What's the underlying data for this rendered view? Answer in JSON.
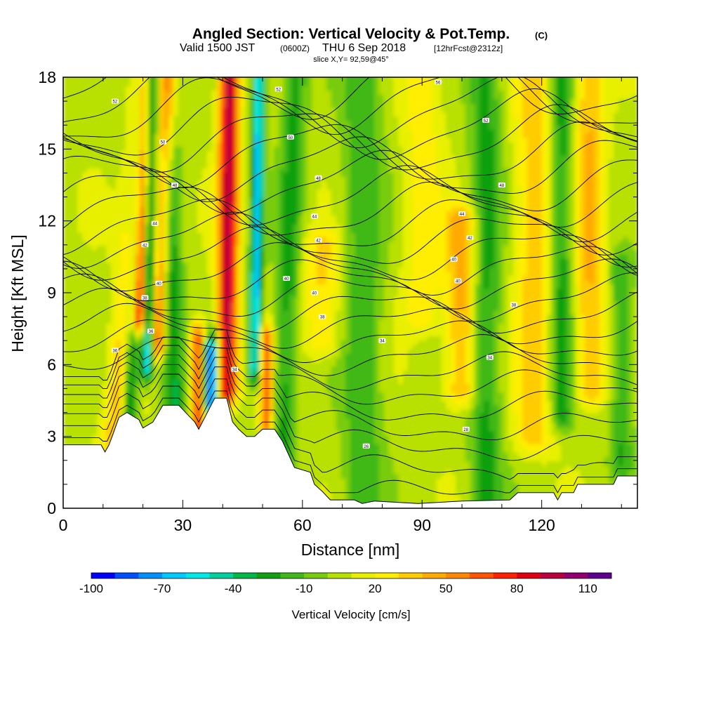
{
  "chart_data": {
    "type": "heatmap",
    "title": "Angled Section: Vertical Velocity & Pot.Temp.",
    "title_suffix": "(C)",
    "subtitle_valid": "Valid 1500 JST",
    "subtitle_utc": "(0600Z)",
    "subtitle_date": "THU 6 Sep 2018",
    "subtitle_fcst": "[12hrFcst@2312z]",
    "slice_label": "slice X,Y= 92,59@45°",
    "xlabel": "Distance [nm]",
    "ylabel": "Height [Kft MSL]",
    "xlim": [
      0,
      144
    ],
    "ylim": [
      0,
      18
    ],
    "xticks": [
      "0",
      "30",
      "60",
      "90",
      "120"
    ],
    "xtick_values": [
      0,
      30,
      60,
      90,
      120
    ],
    "yticks": [
      "0",
      "3",
      "6",
      "9",
      "12",
      "15",
      "18"
    ],
    "ytick_values": [
      0,
      3,
      6,
      9,
      12,
      15,
      18
    ],
    "colorbar": {
      "label": "Vertical Velocity [cm/s]",
      "min": -100,
      "max": 120,
      "step": 10,
      "tick_labels": [
        "-100",
        "-70",
        "-40",
        "-10",
        "20",
        "50",
        "80",
        "110"
      ],
      "tick_values": [
        -100,
        -70,
        -40,
        -10,
        20,
        50,
        80,
        110
      ],
      "colors": [
        "#0000ff",
        "#0050ff",
        "#0090ff",
        "#00c8ff",
        "#00e8e8",
        "#00d0a0",
        "#00b848",
        "#10a010",
        "#40b818",
        "#78cc10",
        "#b8e000",
        "#e8f000",
        "#ffee00",
        "#ffcc00",
        "#ffaa00",
        "#ff8800",
        "#ff5500",
        "#ff2200",
        "#e00010",
        "#b80040",
        "#900070",
        "#600090"
      ]
    },
    "terrain_kft": [
      [
        0,
        2.65
      ],
      [
        9.5,
        2.65
      ],
      [
        10.5,
        2.35
      ],
      [
        11.5,
        2.65
      ],
      [
        12.5,
        3.1
      ],
      [
        14,
        3.8
      ],
      [
        16,
        4.0
      ],
      [
        19,
        3.7
      ],
      [
        20,
        3.35
      ],
      [
        22.5,
        3.6
      ],
      [
        25,
        4.3
      ],
      [
        29,
        4.3
      ],
      [
        31,
        3.95
      ],
      [
        33,
        3.6
      ],
      [
        34,
        3.3
      ],
      [
        36,
        3.95
      ],
      [
        38,
        4.6
      ],
      [
        41,
        4.6
      ],
      [
        42.5,
        3.6
      ],
      [
        44,
        3.3
      ],
      [
        46,
        3.0
      ],
      [
        48,
        3.0
      ],
      [
        50,
        3.3
      ],
      [
        53,
        3.3
      ],
      [
        55,
        2.8
      ],
      [
        58,
        1.7
      ],
      [
        62,
        1.5
      ],
      [
        63,
        1.0
      ],
      [
        65,
        0.7
      ],
      [
        67,
        0.35
      ],
      [
        73,
        0.35
      ],
      [
        75,
        0.2
      ],
      [
        78,
        0.3
      ],
      [
        89,
        0.2
      ],
      [
        100,
        0.3
      ],
      [
        112,
        0.35
      ],
      [
        114,
        0.65
      ],
      [
        123,
        0.65
      ],
      [
        124,
        0.35
      ],
      [
        125,
        0.65
      ],
      [
        128,
        0.65
      ],
      [
        129,
        1.0
      ],
      [
        138,
        1.0
      ],
      [
        139,
        1.35
      ],
      [
        144,
        1.35
      ]
    ],
    "vertical_velocity_features": [
      {
        "x": 12,
        "z0": 0,
        "z1": 18,
        "w": 4,
        "v": 40,
        "tilt": 0.6
      },
      {
        "x": 16,
        "z0": 2,
        "z1": 18,
        "w": 2,
        "v": -70,
        "tilt": 0.3
      },
      {
        "x": 19,
        "z0": 8,
        "z1": 18,
        "w": 1.8,
        "v": 90,
        "tilt": 0.2
      },
      {
        "x": 21,
        "z0": 6,
        "z1": 18,
        "w": 1.5,
        "v": -75,
        "tilt": 0.1
      },
      {
        "x": 24,
        "z0": 7,
        "z1": 18,
        "w": 2,
        "v": 60,
        "tilt": 0.2
      },
      {
        "x": 28,
        "z0": 3,
        "z1": 18,
        "w": 3,
        "v": -40,
        "tilt": -0.2
      },
      {
        "x": 34,
        "z0": 3.5,
        "z1": 7,
        "w": 2,
        "v": 70,
        "tilt": 0
      },
      {
        "x": 37,
        "z0": 4.5,
        "z1": 6.5,
        "w": 2,
        "v": -95,
        "tilt": 0
      },
      {
        "x": 41,
        "z0": 5,
        "z1": 18,
        "w": 2.5,
        "v": 90,
        "tilt": 0.05
      },
      {
        "x": 48,
        "z0": 6,
        "z1": 18,
        "w": 1.5,
        "v": -70,
        "tilt": 0.1
      },
      {
        "x": 51,
        "z0": 3.5,
        "z1": 7,
        "w": 1.5,
        "v": 60,
        "tilt": 0
      },
      {
        "x": 55,
        "z0": 2,
        "z1": 18,
        "w": 3,
        "v": -30,
        "tilt": 0.2
      },
      {
        "x": 65,
        "z0": 7,
        "z1": 11,
        "w": 5,
        "v": 25,
        "tilt": 0
      },
      {
        "x": 75,
        "z0": 0,
        "z1": 18,
        "w": 5,
        "v": -25,
        "tilt": 0
      },
      {
        "x": 90,
        "z0": 8,
        "z1": 18,
        "w": 5,
        "v": 20,
        "tilt": 0
      },
      {
        "x": 100,
        "z0": 5,
        "z1": 12,
        "w": 4,
        "v": 40,
        "tilt": 0
      },
      {
        "x": 106,
        "z0": 0,
        "z1": 18,
        "w": 4,
        "v": -30,
        "tilt": 0
      },
      {
        "x": 118,
        "z0": 3,
        "z1": 18,
        "w": 5,
        "v": 30,
        "tilt": 0
      },
      {
        "x": 125,
        "z0": 4,
        "z1": 18,
        "w": 3,
        "v": -35,
        "tilt": 0
      },
      {
        "x": 132,
        "z0": 5,
        "z1": 18,
        "w": 4,
        "v": 35,
        "tilt": 0
      },
      {
        "x": 140,
        "z0": 2,
        "z1": 10,
        "w": 3,
        "v": -25,
        "tilt": 0
      }
    ],
    "contour_base_kft": [
      0.6,
      1.6,
      2.6,
      3.4,
      4.2,
      5.0,
      5.7,
      6.4,
      7.0,
      7.6,
      8.2,
      8.8,
      9.4,
      10.0,
      10.6,
      11.2,
      11.8,
      12.4,
      13.0,
      13.6,
      14.2,
      14.8,
      15.4,
      16.0,
      16.6,
      17.2,
      17.8
    ],
    "contour_labels": [
      {
        "x": 76,
        "z": 2.6,
        "text": "26"
      },
      {
        "x": 101,
        "z": 3.3,
        "text": "28"
      },
      {
        "x": 43,
        "z": 5.8,
        "text": "34"
      },
      {
        "x": 13,
        "z": 6.6,
        "text": "36"
      },
      {
        "x": 107,
        "z": 6.3,
        "text": "34"
      },
      {
        "x": 80,
        "z": 7.0,
        "text": "34"
      },
      {
        "x": 22,
        "z": 7.4,
        "text": "36"
      },
      {
        "x": 65,
        "z": 8.0,
        "text": "38"
      },
      {
        "x": 20.5,
        "z": 8.8,
        "text": "38"
      },
      {
        "x": 113,
        "z": 8.5,
        "text": "38"
      },
      {
        "x": 63,
        "z": 9.0,
        "text": "40"
      },
      {
        "x": 24,
        "z": 9.4,
        "text": "40"
      },
      {
        "x": 99,
        "z": 9.5,
        "text": "40"
      },
      {
        "x": 56,
        "z": 9.6,
        "text": "40"
      },
      {
        "x": 98,
        "z": 10.4,
        "text": "40"
      },
      {
        "x": 20.5,
        "z": 11.0,
        "text": "42"
      },
      {
        "x": 64,
        "z": 11.2,
        "text": "42"
      },
      {
        "x": 102,
        "z": 11.3,
        "text": "42"
      },
      {
        "x": 23,
        "z": 11.9,
        "text": "44"
      },
      {
        "x": 63,
        "z": 12.2,
        "text": "44"
      },
      {
        "x": 100,
        "z": 12.3,
        "text": "44"
      },
      {
        "x": 28,
        "z": 13.5,
        "text": "48"
      },
      {
        "x": 64,
        "z": 13.8,
        "text": "48"
      },
      {
        "x": 110,
        "z": 13.5,
        "text": "48"
      },
      {
        "x": 25,
        "z": 15.3,
        "text": "50"
      },
      {
        "x": 57,
        "z": 15.5,
        "text": "50"
      },
      {
        "x": 106,
        "z": 16.2,
        "text": "52"
      },
      {
        "x": 13,
        "z": 17.0,
        "text": "52"
      },
      {
        "x": 54,
        "z": 17.5,
        "text": "52"
      },
      {
        "x": 94,
        "z": 17.8,
        "text": "56"
      }
    ]
  }
}
